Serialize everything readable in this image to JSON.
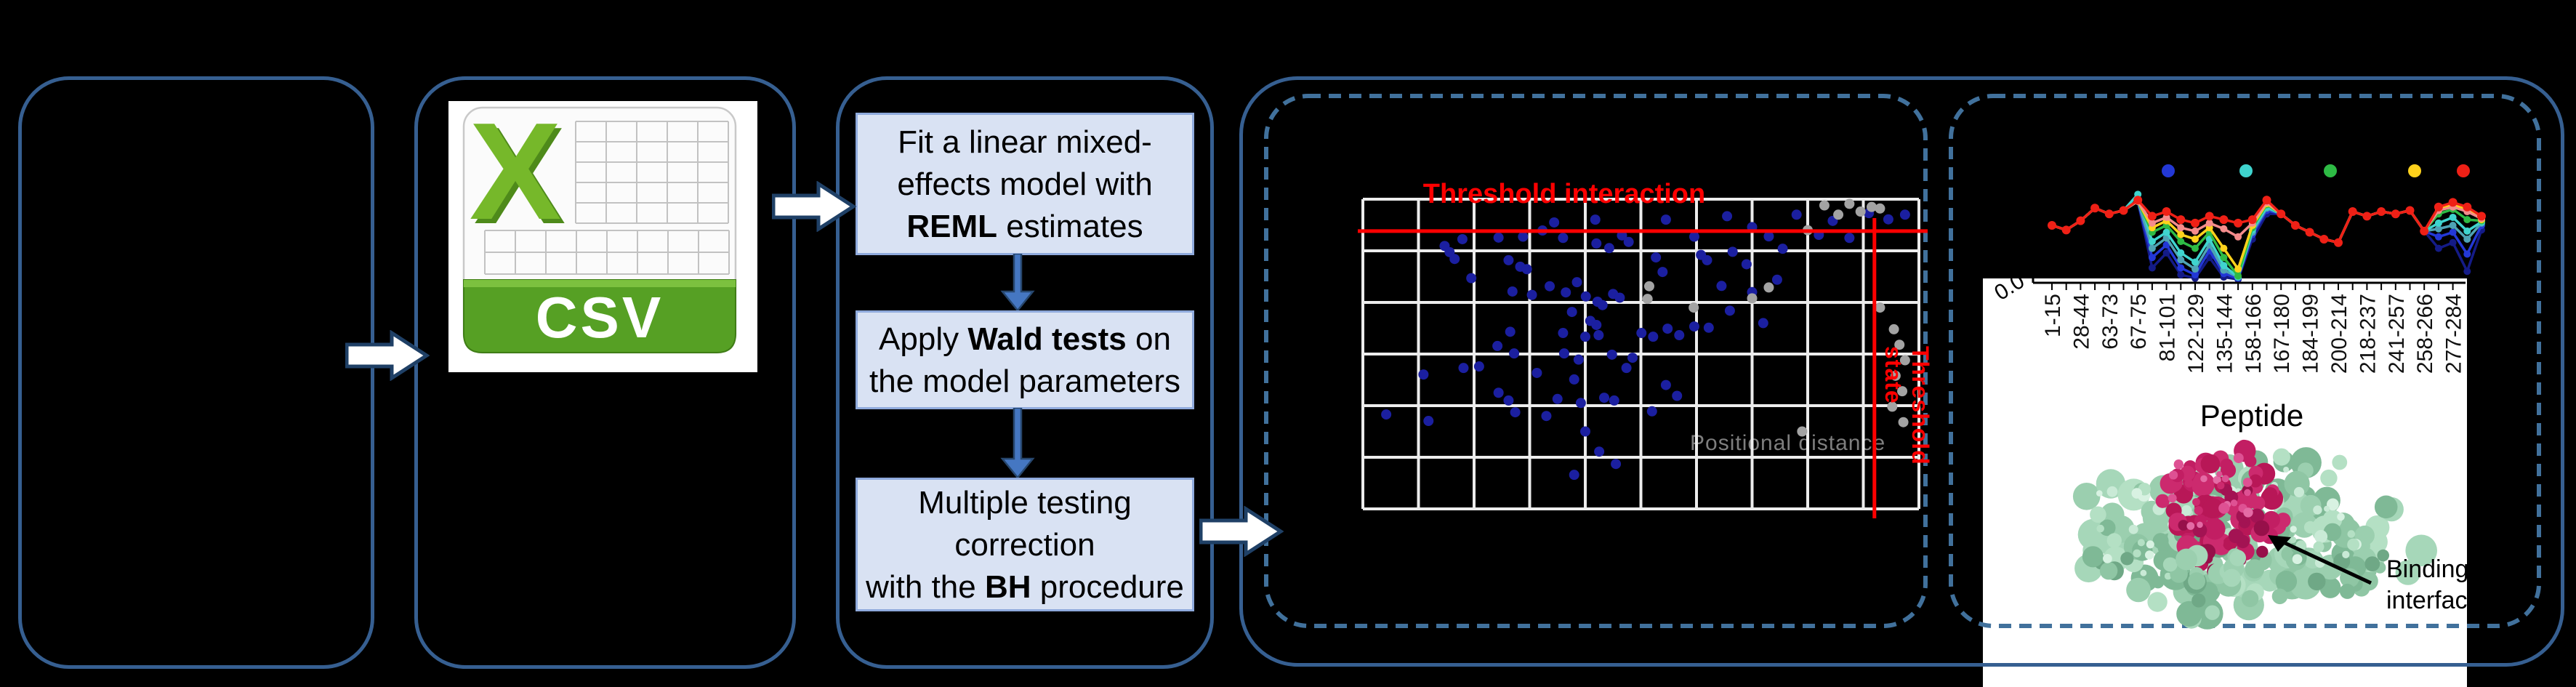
{
  "figure": {
    "background": "#000000",
    "solid_border_color": "#365F91",
    "dashed_border_color": "#41719C",
    "step_fill": "#D9E2F3",
    "step_border": "#8FAADC"
  },
  "csv": {
    "x_letter": "X",
    "label": "CSV",
    "x_color": "#76B82A",
    "banner_color": "#56A024"
  },
  "workflow": {
    "steps": [
      {
        "lines": [
          [
            {
              "t": "Fit a linear mixed-"
            }
          ],
          [
            {
              "t": "effects model with"
            }
          ],
          [
            {
              "t": "REML",
              "b": true
            },
            {
              "t": " estimates"
            }
          ]
        ]
      },
      {
        "lines": [
          [
            {
              "t": "Apply "
            },
            {
              "t": "Wald tests",
              "b": true
            },
            {
              "t": " on"
            }
          ],
          [
            {
              "t": "the model parameters"
            }
          ]
        ]
      },
      {
        "lines": [
          [
            {
              "t": "Multiple testing"
            }
          ],
          [
            {
              "t": "correction"
            }
          ],
          [
            {
              "t": "with the "
            },
            {
              "t": "BH",
              "b": true
            },
            {
              "t": " procedure"
            }
          ]
        ]
      }
    ]
  },
  "protein": {
    "annotation": "Binding\ninterface",
    "surface_color": "#9BCFAF",
    "epitope_color": "#C21E63"
  },
  "chart_data": [
    {
      "id": "interaction_scatter",
      "type": "scatter",
      "title": "Threshold interaction",
      "vline_label": "Threshold state",
      "axis_hint": "Positional distance",
      "grid": {
        "cols": 10,
        "rows": 6,
        "line_color": "#ECECEC"
      },
      "red_hline_frac": 0.103,
      "red_vline_frac": 0.92,
      "threshold_color": "#FF0000",
      "point_color": "#1B1FA0",
      "muted_point_color": "#A3A3A3",
      "points_blue": [
        [
          0.179,
          0.129
        ],
        [
          0.147,
          0.151
        ],
        [
          0.156,
          0.171
        ],
        [
          0.165,
          0.193
        ],
        [
          0.244,
          0.124
        ],
        [
          0.288,
          0.121
        ],
        [
          0.323,
          0.101
        ],
        [
          0.344,
          0.075
        ],
        [
          0.36,
          0.125
        ],
        [
          0.418,
          0.066
        ],
        [
          0.42,
          0.143
        ],
        [
          0.443,
          0.158
        ],
        [
          0.466,
          0.117
        ],
        [
          0.478,
          0.138
        ],
        [
          0.545,
          0.066
        ],
        [
          0.527,
          0.188
        ],
        [
          0.539,
          0.235
        ],
        [
          0.596,
          0.121
        ],
        [
          0.608,
          0.18
        ],
        [
          0.619,
          0.197
        ],
        [
          0.262,
          0.197
        ],
        [
          0.283,
          0.218
        ],
        [
          0.295,
          0.226
        ],
        [
          0.195,
          0.255
        ],
        [
          0.269,
          0.298
        ],
        [
          0.304,
          0.309
        ],
        [
          0.336,
          0.281
        ],
        [
          0.365,
          0.301
        ],
        [
          0.385,
          0.268
        ],
        [
          0.401,
          0.314
        ],
        [
          0.422,
          0.331
        ],
        [
          0.431,
          0.342
        ],
        [
          0.45,
          0.306
        ],
        [
          0.462,
          0.318
        ],
        [
          0.376,
          0.364
        ],
        [
          0.409,
          0.393
        ],
        [
          0.42,
          0.406
        ],
        [
          0.36,
          0.432
        ],
        [
          0.4,
          0.444
        ],
        [
          0.424,
          0.439
        ],
        [
          0.265,
          0.428
        ],
        [
          0.272,
          0.498
        ],
        [
          0.242,
          0.474
        ],
        [
          0.209,
          0.54
        ],
        [
          0.181,
          0.545
        ],
        [
          0.109,
          0.566
        ],
        [
          0.313,
          0.561
        ],
        [
          0.362,
          0.498
        ],
        [
          0.388,
          0.518
        ],
        [
          0.448,
          0.502
        ],
        [
          0.485,
          0.512
        ],
        [
          0.501,
          0.432
        ],
        [
          0.522,
          0.444
        ],
        [
          0.548,
          0.418
        ],
        [
          0.569,
          0.439
        ],
        [
          0.596,
          0.411
        ],
        [
          0.622,
          0.415
        ],
        [
          0.244,
          0.625
        ],
        [
          0.262,
          0.65
        ],
        [
          0.042,
          0.695
        ],
        [
          0.118,
          0.716
        ],
        [
          0.274,
          0.688
        ],
        [
          0.38,
          0.582
        ],
        [
          0.392,
          0.658
        ],
        [
          0.434,
          0.641
        ],
        [
          0.452,
          0.65
        ],
        [
          0.474,
          0.545
        ],
        [
          0.655,
          0.055
        ],
        [
          0.7,
          0.09
        ],
        [
          0.665,
          0.17
        ],
        [
          0.69,
          0.21
        ],
        [
          0.73,
          0.12
        ],
        [
          0.755,
          0.16
        ],
        [
          0.78,
          0.05
        ],
        [
          0.82,
          0.115
        ],
        [
          0.845,
          0.07
        ],
        [
          0.875,
          0.125
        ],
        [
          0.91,
          0.045
        ],
        [
          0.945,
          0.065
        ],
        [
          0.975,
          0.05
        ],
        [
          0.645,
          0.28
        ],
        [
          0.7,
          0.3
        ],
        [
          0.745,
          0.26
        ],
        [
          0.66,
          0.36
        ],
        [
          0.72,
          0.4
        ],
        [
          0.4,
          0.75
        ],
        [
          0.425,
          0.815
        ],
        [
          0.455,
          0.855
        ],
        [
          0.38,
          0.89
        ],
        [
          0.545,
          0.6
        ],
        [
          0.565,
          0.635
        ],
        [
          0.52,
          0.685
        ],
        [
          0.35,
          0.645
        ],
        [
          0.33,
          0.7
        ]
      ],
      "points_gray": [
        [
          0.515,
          0.281
        ],
        [
          0.512,
          0.322
        ],
        [
          0.595,
          0.35
        ],
        [
          0.83,
          0.02
        ],
        [
          0.855,
          0.05
        ],
        [
          0.875,
          0.015
        ],
        [
          0.895,
          0.04
        ],
        [
          0.915,
          0.025
        ],
        [
          0.8,
          0.1
        ],
        [
          0.93,
          0.03
        ],
        [
          0.955,
          0.42
        ],
        [
          0.965,
          0.47
        ],
        [
          0.975,
          0.52
        ],
        [
          0.958,
          0.57
        ],
        [
          0.97,
          0.62
        ],
        [
          0.952,
          0.67
        ],
        [
          0.972,
          0.72
        ],
        [
          0.79,
          0.75
        ],
        [
          0.93,
          0.35
        ],
        [
          0.7,
          0.32
        ],
        [
          0.73,
          0.285
        ]
      ]
    },
    {
      "id": "uptake_lines",
      "type": "line",
      "xlabel": "Peptide",
      "y_origin_label": "0.0",
      "x_tick_labels": [
        "1-15",
        "28-44",
        "63-73",
        "67-75",
        "81-101",
        "122-129",
        "135-144",
        "158-166",
        "167-180",
        "184-199",
        "200-214",
        "218-237",
        "241-257",
        "258-266",
        "277-284"
      ],
      "legend_dot_colors": [
        "#2338D6",
        "#3FD4CE",
        "#2EBB45",
        "#FFD21C",
        "#EF2016"
      ],
      "ylim": [
        0.0,
        0.8
      ],
      "series": [
        {
          "name": "series-navy",
          "color": "#141B87",
          "values": [
            0.5,
            0.46,
            0.54,
            0.65,
            0.6,
            0.63,
            0.71,
            0.13,
            0.26,
            0.07,
            0.04,
            0.22,
            0.05,
            0.03,
            0.38,
            0.6,
            0.6,
            0.5,
            0.44,
            0.38,
            0.35,
            0.62,
            0.58,
            0.62,
            0.6,
            0.63,
            0.45,
            0.3,
            0.35,
            0.1,
            0.46
          ]
        },
        {
          "name": "series-blue",
          "color": "#2338D6",
          "values": [
            0.5,
            0.46,
            0.54,
            0.65,
            0.6,
            0.63,
            0.71,
            0.22,
            0.33,
            0.13,
            0.07,
            0.28,
            0.08,
            0.04,
            0.42,
            0.63,
            0.6,
            0.5,
            0.44,
            0.38,
            0.35,
            0.62,
            0.58,
            0.62,
            0.6,
            0.63,
            0.45,
            0.4,
            0.44,
            0.25,
            0.5
          ]
        },
        {
          "name": "series-teal",
          "color": "#4EA3B5",
          "values": [
            0.5,
            0.46,
            0.54,
            0.65,
            0.6,
            0.63,
            0.71,
            0.3,
            0.39,
            0.2,
            0.12,
            0.33,
            0.11,
            0.05,
            0.44,
            0.65,
            0.6,
            0.5,
            0.44,
            0.38,
            0.35,
            0.62,
            0.58,
            0.62,
            0.6,
            0.63,
            0.45,
            0.47,
            0.5,
            0.38,
            0.52
          ]
        },
        {
          "name": "series-cyan",
          "color": "#3FD4CE",
          "values": [
            0.5,
            0.46,
            0.54,
            0.65,
            0.6,
            0.63,
            0.77,
            0.36,
            0.44,
            0.26,
            0.18,
            0.38,
            0.15,
            0.05,
            0.46,
            0.66,
            0.6,
            0.5,
            0.44,
            0.38,
            0.35,
            0.62,
            0.58,
            0.62,
            0.6,
            0.63,
            0.45,
            0.52,
            0.57,
            0.45,
            0.53
          ]
        },
        {
          "name": "series-green",
          "color": "#2EBB45",
          "values": [
            0.5,
            0.46,
            0.54,
            0.65,
            0.6,
            0.63,
            0.71,
            0.44,
            0.5,
            0.36,
            0.3,
            0.44,
            0.22,
            0.06,
            0.48,
            0.68,
            0.6,
            0.5,
            0.44,
            0.38,
            0.35,
            0.62,
            0.58,
            0.62,
            0.6,
            0.63,
            0.45,
            0.6,
            0.64,
            0.55,
            0.54
          ]
        },
        {
          "name": "series-yellow",
          "color": "#FFD21C",
          "values": [
            0.5,
            0.46,
            0.54,
            0.65,
            0.6,
            0.63,
            0.71,
            0.48,
            0.54,
            0.42,
            0.38,
            0.48,
            0.3,
            0.12,
            0.5,
            0.69,
            0.6,
            0.5,
            0.44,
            0.38,
            0.35,
            0.62,
            0.58,
            0.62,
            0.6,
            0.63,
            0.45,
            0.65,
            0.68,
            0.64,
            0.55
          ]
        },
        {
          "name": "series-salmon",
          "color": "#F48C8C",
          "values": [
            0.5,
            0.46,
            0.54,
            0.65,
            0.6,
            0.63,
            0.71,
            0.52,
            0.57,
            0.48,
            0.45,
            0.52,
            0.47,
            0.4,
            0.52,
            0.7,
            0.6,
            0.5,
            0.44,
            0.38,
            0.35,
            0.62,
            0.58,
            0.62,
            0.6,
            0.63,
            0.45,
            0.63,
            0.66,
            0.62,
            0.56
          ]
        },
        {
          "name": "series-red",
          "color": "#EF2016",
          "values": [
            0.5,
            0.46,
            0.54,
            0.65,
            0.6,
            0.63,
            0.72,
            0.58,
            0.62,
            0.55,
            0.52,
            0.58,
            0.55,
            0.52,
            0.55,
            0.72,
            0.6,
            0.5,
            0.44,
            0.38,
            0.35,
            0.62,
            0.58,
            0.62,
            0.6,
            0.63,
            0.45,
            0.66,
            0.7,
            0.66,
            0.58
          ]
        }
      ]
    }
  ]
}
